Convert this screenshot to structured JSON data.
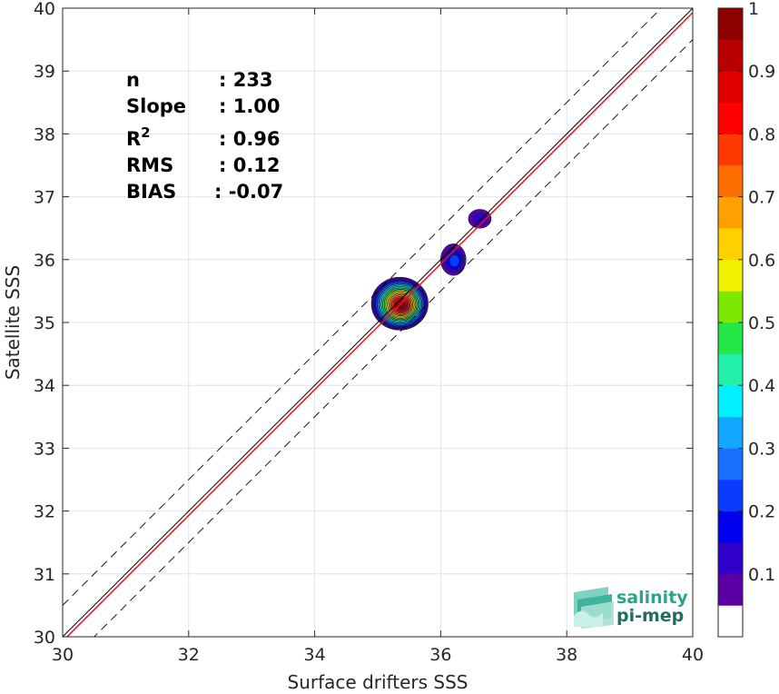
{
  "chart_data": {
    "type": "heatmap",
    "xlabel": "Surface drifters SSS",
    "ylabel": "Satellite SSS",
    "xlim": [
      30,
      40
    ],
    "ylim": [
      30,
      40
    ],
    "xticks": [
      30,
      32,
      34,
      36,
      38,
      40
    ],
    "yticks": [
      30,
      31,
      32,
      33,
      34,
      35,
      36,
      37,
      38,
      39,
      40
    ],
    "grid": true,
    "stats": [
      {
        "label": "n",
        "value": ": 233"
      },
      {
        "label": "Slope",
        "value": ": 1.00"
      },
      {
        "label": "R",
        "sup": "2",
        "value": ": 0.96"
      },
      {
        "label": "RMS",
        "value": ": 0.12"
      },
      {
        "label": "BIAS",
        "value": ": -0.07"
      }
    ],
    "reference_lines": {
      "one_to_one": {
        "slope": 1,
        "intercept": 0,
        "color": "#000000"
      },
      "regression": {
        "slope": 1.0,
        "intercept": -0.07,
        "color": "#e8141e"
      },
      "dashed_offset": 0.5
    },
    "density_clusters": [
      {
        "x": 35.35,
        "y": 35.3,
        "peak": 1.0,
        "rx": 0.45,
        "ry": 0.42
      },
      {
        "x": 36.2,
        "y": 36.0,
        "peak": 0.22,
        "rx": 0.2,
        "ry": 0.25
      },
      {
        "x": 36.62,
        "y": 36.65,
        "peak": 0.13,
        "rx": 0.18,
        "ry": 0.15
      }
    ],
    "colorbar": {
      "min": 0,
      "max": 1,
      "ticks": [
        "0.1",
        "0.2",
        "0.3",
        "0.4",
        "0.5",
        "0.6",
        "0.7",
        "0.8",
        "0.9",
        "1"
      ],
      "levels": [
        "#ffffff",
        "#5a00a5",
        "#2e00c8",
        "#0000f0",
        "#0a3cff",
        "#1a70ff",
        "#12a8ff",
        "#00f0ff",
        "#22f0a8",
        "#22e848",
        "#7de800",
        "#f0f000",
        "#ffd000",
        "#ffa000",
        "#ff6e00",
        "#ff3a00",
        "#ff0000",
        "#e00000",
        "#b80000",
        "#8c0000"
      ]
    }
  },
  "logo": {
    "line1": "salinity",
    "line2": "pi-mep"
  }
}
